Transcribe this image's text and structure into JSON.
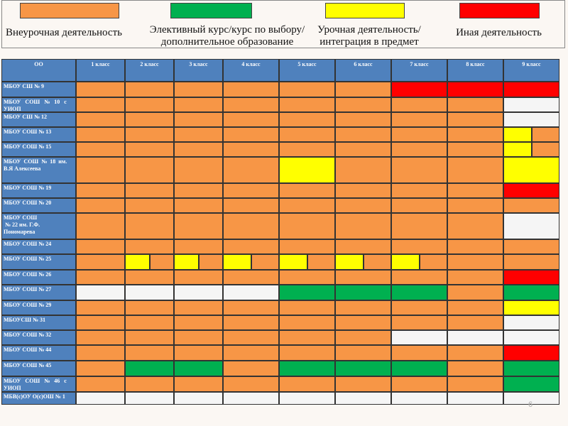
{
  "legend": [
    {
      "color": "#f79646",
      "lines": [
        "Внеурочная деятельность"
      ]
    },
    {
      "color": "#00b050",
      "lines": [
        "Элективный курс/курс по выбору/",
        "дополнительное образование"
      ]
    },
    {
      "color": "#ffff00",
      "lines": [
        "Урочная  деятельность/",
        "интеграция в предмет"
      ]
    },
    {
      "color": "#ff0000",
      "lines": [
        "Иная деятельность"
      ]
    }
  ],
  "table": {
    "header": [
      "ОО",
      "1 класс",
      "2 класс",
      "3 класс",
      "4 класс",
      "5 класс",
      "6 класс",
      "7 класс",
      "8 класс",
      "9 класс"
    ],
    "rows": [
      {
        "label": [
          "МБОУ СШ № 9"
        ],
        "cells": [
          "#f79646",
          "#f79646",
          "#f79646",
          "#f79646",
          "#f79646",
          "#f79646",
          "#ff0000",
          "#ff0000",
          "#ff0000"
        ]
      },
      {
        "label": [
          "МБОУ   СОШ   №   10   с",
          "УИОП"
        ],
        "cells": [
          "#f79646",
          "#f79646",
          "#f79646",
          "#f79646",
          "#f79646",
          "#f79646",
          "#f79646",
          "#f79646",
          "#f5f5f5"
        ]
      },
      {
        "label": [
          "МБОУ СШ № 12"
        ],
        "cells": [
          "#f79646",
          "#f79646",
          "#f79646",
          "#f79646",
          "#f79646",
          "#f79646",
          "#f79646",
          "#f79646",
          "#f5f5f5"
        ]
      },
      {
        "label": [
          "МБОУ СОШ № 13"
        ],
        "cells": [
          "#f79646",
          "#f79646",
          "#f79646",
          "#f79646",
          "#f79646",
          "#f79646",
          "#f79646",
          "#f79646",
          [
            "#ffff00",
            "#f79646"
          ]
        ]
      },
      {
        "label": [
          "МБОУ СОШ № 15"
        ],
        "cells": [
          "#f79646",
          "#f79646",
          "#f79646",
          "#f79646",
          "#f79646",
          "#f79646",
          "#f79646",
          "#f79646",
          [
            "#ffff00",
            "#f79646"
          ]
        ]
      },
      {
        "label": [
          "МБОУ  СОШ  №  18  им.",
          "В.Я Алексеева"
        ],
        "cells": [
          "#f79646",
          "#f79646",
          "#f79646",
          "#f79646",
          "#ffff00",
          "#f79646",
          "#f79646",
          "#f79646",
          "#ffff00"
        ]
      },
      {
        "label": [
          "МБОУ СОШ № 19"
        ],
        "cells": [
          "#f79646",
          "#f79646",
          "#f79646",
          "#f79646",
          "#f79646",
          "#f79646",
          "#f79646",
          "#f79646",
          "#ff0000"
        ]
      },
      {
        "label": [
          "МБОУ СОШ № 20"
        ],
        "cells": [
          "#f79646",
          "#f79646",
          "#f79646",
          "#f79646",
          "#f79646",
          "#f79646",
          "#f79646",
          "#f79646",
          "#f79646"
        ]
      },
      {
        "label": [
          "МБОУ СОШ",
          " № 22 им. Г.Ф.",
          "Пономарева"
        ],
        "cells": [
          "#f79646",
          "#f79646",
          "#f79646",
          "#f79646",
          "#f79646",
          "#f79646",
          "#f79646",
          "#f79646",
          "#f5f5f5"
        ]
      },
      {
        "label": [
          "МБОУ СОШ № 24"
        ],
        "cells": [
          "#f79646",
          "#f79646",
          "#f79646",
          "#f79646",
          "#f79646",
          "#f79646",
          "#f79646",
          "#f79646",
          "#f79646"
        ]
      },
      {
        "label": [
          "МБОУ СОШ № 25"
        ],
        "cells": [
          "#f79646",
          [
            "#ffff00",
            "#f79646"
          ],
          [
            "#ffff00",
            "#f79646"
          ],
          [
            "#ffff00",
            "#f79646"
          ],
          [
            "#ffff00",
            "#f79646"
          ],
          [
            "#ffff00",
            "#f79646"
          ],
          [
            "#ffff00",
            "#f79646"
          ],
          "#f79646",
          "#f79646"
        ]
      },
      {
        "label": [
          "МБОУ СОШ № 26"
        ],
        "cells": [
          "#f79646",
          "#f79646",
          "#f79646",
          "#f79646",
          "#f79646",
          "#f79646",
          "#f79646",
          "#f79646",
          "#ff0000"
        ]
      },
      {
        "label": [
          "МБОУ СОШ № 27"
        ],
        "cells": [
          "#f5f5f5",
          "#f5f5f5",
          "#f5f5f5",
          "#f5f5f5",
          "#00b050",
          "#00b050",
          "#00b050",
          "#f79646",
          "#00b050"
        ]
      },
      {
        "label": [
          "МБОУ СОШ № 29"
        ],
        "cells": [
          "#f79646",
          "#f79646",
          "#f79646",
          "#f79646",
          "#f79646",
          "#f79646",
          "#f79646",
          "#f79646",
          "#ffff00"
        ]
      },
      {
        "label": [
          "МБОУСШ № 31"
        ],
        "cells": [
          "#f79646",
          "#f79646",
          "#f79646",
          "#f79646",
          "#f79646",
          "#f79646",
          "#f79646",
          "#f79646",
          "#f5f5f5"
        ]
      },
      {
        "label": [
          "МБОУ СОШ № 32"
        ],
        "cells": [
          "#f79646",
          "#f79646",
          "#f79646",
          "#f79646",
          "#f79646",
          "#f79646",
          "#f5f5f5",
          "#f5f5f5",
          "#f5f5f5"
        ]
      },
      {
        "label": [
          "МБОУ СОШ № 44"
        ],
        "cells": [
          "#f79646",
          "#f79646",
          "#f79646",
          "#f79646",
          "#f79646",
          "#f79646",
          "#f79646",
          "#f79646",
          "#ff0000"
        ]
      },
      {
        "label": [
          "МБОУ СОШ № 45"
        ],
        "cells": [
          "#f79646",
          "#00b050",
          "#00b050",
          "#f79646",
          "#00b050",
          "#00b050",
          "#00b050",
          "#f79646",
          "#00b050"
        ]
      },
      {
        "label": [
          "МБОУ   СОШ   №   46   с",
          "УИОП"
        ],
        "cells": [
          "#f79646",
          "#f79646",
          "#f79646",
          "#f79646",
          "#f79646",
          "#f79646",
          "#f79646",
          "#f79646",
          "#00b050"
        ]
      },
      {
        "label": [
          "МБВ(с)ОУ О(с)ОШ № 1"
        ],
        "cells": [
          "#f5f5f5",
          "#f5f5f5",
          "#f5f5f5",
          "#f5f5f5",
          "#f5f5f5",
          "#f5f5f5",
          "#f5f5f5",
          "#f5f5f5",
          "#f5f5f5"
        ]
      }
    ]
  },
  "page_number": "6"
}
